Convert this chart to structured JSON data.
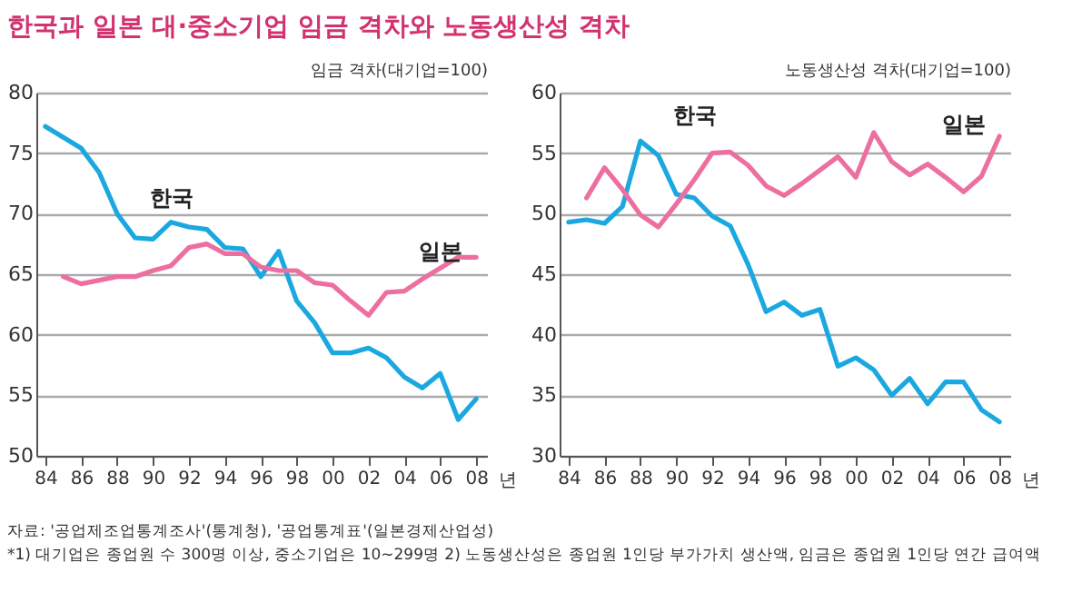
{
  "chart_data": [
    {
      "type": "line",
      "title": "한국과 일본 대·중소기업 임금 격차와 노동생산성 격차",
      "ylabel": "임금 격차(대기업=100)",
      "xlim": [
        1983.5,
        2008.6
      ],
      "xticks": [
        {
          "value": 1984,
          "label": "84"
        },
        {
          "value": 1986,
          "label": "86"
        },
        {
          "value": 1988,
          "label": "88"
        },
        {
          "value": 1990,
          "label": "90"
        },
        {
          "value": 1992,
          "label": "92"
        },
        {
          "value": 1994,
          "label": "94"
        },
        {
          "value": 1996,
          "label": "96"
        },
        {
          "value": 1998,
          "label": "98"
        },
        {
          "value": 2000,
          "label": "00"
        },
        {
          "value": 2002,
          "label": "02"
        },
        {
          "value": 2004,
          "label": "04"
        },
        {
          "value": 2006,
          "label": "06"
        },
        {
          "value": 2008,
          "label": "08"
        }
      ],
      "xlabel": "년",
      "ylim": [
        50,
        80
      ],
      "yticks": [
        50,
        55,
        60,
        65,
        70,
        75,
        80
      ],
      "grid": "y",
      "legend": false,
      "series": [
        {
          "name": "한국",
          "color": "#1ba8e0",
          "x": [
            1984,
            1985,
            1986,
            1987,
            1988,
            1989,
            1990,
            1991,
            1992,
            1993,
            1994,
            1995,
            1996,
            1997,
            1998,
            1999,
            2000,
            2001,
            2002,
            2003,
            2004,
            2005,
            2006,
            2007,
            2008
          ],
          "values": [
            77.2,
            76.3,
            75.4,
            73.4,
            70,
            68,
            67.9,
            69.3,
            68.9,
            68.7,
            67.2,
            67.1,
            64.8,
            66.9,
            62.8,
            61,
            58.5,
            58.5,
            58.9,
            58.1,
            56.5,
            55.6,
            56.8,
            53,
            54.7
          ]
        },
        {
          "name": "일본",
          "color": "#ec6fa0",
          "x": [
            1985,
            1986,
            1987,
            1988,
            1989,
            1990,
            1991,
            1992,
            1993,
            1994,
            1995,
            1996,
            1997,
            1998,
            1999,
            2000,
            2001,
            2002,
            2003,
            2004,
            2005,
            2006,
            2007,
            2008
          ],
          "values": [
            64.8,
            64.2,
            64.5,
            64.8,
            64.8,
            65.3,
            65.7,
            67.2,
            67.5,
            66.7,
            66.7,
            65.6,
            65.3,
            65.3,
            64.3,
            64.1,
            62.8,
            61.6,
            63.5,
            63.6,
            64.6,
            65.5,
            66.4,
            66.4
          ]
        }
      ],
      "line_style": "solid"
    },
    {
      "type": "line",
      "ylabel": "노동생산성 격차(대기업=100)",
      "xlim": [
        1983.5,
        2008.6
      ],
      "xticks": [
        {
          "value": 1984,
          "label": "84"
        },
        {
          "value": 1986,
          "label": "86"
        },
        {
          "value": 1988,
          "label": "88"
        },
        {
          "value": 1990,
          "label": "90"
        },
        {
          "value": 1992,
          "label": "92"
        },
        {
          "value": 1994,
          "label": "94"
        },
        {
          "value": 1996,
          "label": "96"
        },
        {
          "value": 1998,
          "label": "98"
        },
        {
          "value": 2000,
          "label": "00"
        },
        {
          "value": 2002,
          "label": "02"
        },
        {
          "value": 2004,
          "label": "04"
        },
        {
          "value": 2006,
          "label": "06"
        },
        {
          "value": 2008,
          "label": "08"
        }
      ],
      "xlabel": "년",
      "ylim": [
        30,
        60
      ],
      "yticks": [
        30,
        35,
        40,
        45,
        50,
        55,
        60
      ],
      "grid": "y",
      "legend": false,
      "series": [
        {
          "name": "한국",
          "color": "#1ba8e0",
          "x": [
            1984,
            1985,
            1986,
            1987,
            1988,
            1989,
            1990,
            1991,
            1992,
            1993,
            1994,
            1995,
            1996,
            1997,
            1998,
            1999,
            2000,
            2001,
            2002,
            2003,
            2004,
            2005,
            2006,
            2007,
            2008
          ],
          "values": [
            49.3,
            49.5,
            49.2,
            50.6,
            56,
            54.8,
            51.6,
            51.3,
            49.8,
            49,
            45.8,
            41.9,
            42.7,
            41.6,
            42.1,
            37.4,
            38.1,
            37.1,
            35,
            36.4,
            34.3,
            36.1,
            36.1,
            33.8,
            32.8
          ]
        },
        {
          "name": "일본",
          "color": "#ec6fa0",
          "x": [
            1985,
            1986,
            1987,
            1988,
            1989,
            1990,
            1991,
            1992,
            1993,
            1994,
            1995,
            1996,
            1997,
            1998,
            1999,
            2000,
            2001,
            2002,
            2003,
            2004,
            2005,
            2006,
            2007,
            2008
          ],
          "values": [
            51.3,
            53.8,
            52,
            49.9,
            48.9,
            50.8,
            52.8,
            55,
            55.1,
            54,
            52.3,
            51.5,
            52.5,
            53.6,
            54.7,
            53,
            56.7,
            54.3,
            53.2,
            54.1,
            53,
            51.8,
            53.1,
            56.4
          ]
        }
      ],
      "annotations": [
        "자료: '공업제조업통계조사'(통계청), '공업통계표'(일본경제산업성)",
        "*1) 대기업은 종업원 수 300명 이상, 중소기업은 10~299명  2) 노동생산성은 종업원 1인당 부가가치 생산액, 임금은 종업원 1인당 연간 급여액"
      ]
    }
  ]
}
